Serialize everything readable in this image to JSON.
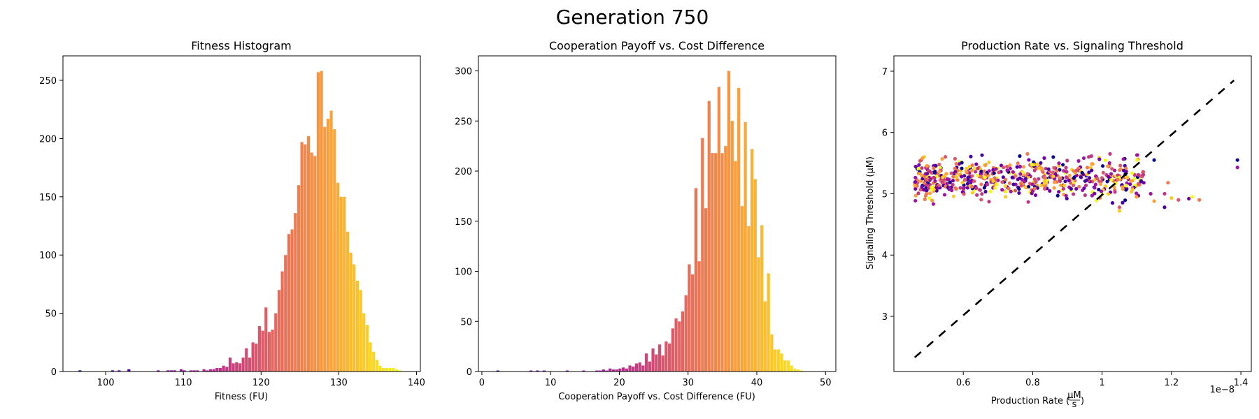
{
  "figure": {
    "suptitle": "Generation 750"
  },
  "colormap": [
    "#0d0887",
    "#46039f",
    "#7201a8",
    "#9c179e",
    "#bd3786",
    "#d8576b",
    "#ed7953",
    "#fb9f3a",
    "#fdca26",
    "#f0f921"
  ],
  "chart_data": [
    {
      "type": "bar",
      "title": "Fitness Histogram",
      "xlabel": "Fitness (FU)",
      "ylabel": "",
      "xlim": [
        94.5,
        140.5
      ],
      "ylim": [
        0,
        271
      ],
      "xticks": [
        100,
        110,
        120,
        130,
        140
      ],
      "yticks": [
        0,
        50,
        100,
        150,
        200,
        250
      ],
      "bin_start": 96.5,
      "bin_width": 0.42,
      "values": [
        1,
        0,
        0,
        0,
        0,
        0,
        0,
        0,
        0,
        0,
        1,
        0,
        1,
        0,
        0,
        2,
        0,
        0,
        0,
        0,
        0,
        0,
        0,
        0,
        1,
        0,
        0,
        1,
        1,
        1,
        0,
        2,
        1,
        0,
        1,
        1,
        1,
        0,
        2,
        1,
        2,
        2,
        3,
        3,
        5,
        4,
        12,
        7,
        8,
        7,
        12,
        20,
        12,
        25,
        24,
        39,
        35,
        55,
        34,
        36,
        50,
        70,
        86,
        100,
        118,
        122,
        136,
        160,
        197,
        195,
        202,
        188,
        185,
        257,
        258,
        210,
        217,
        224,
        208,
        162,
        150,
        150,
        120,
        102,
        92,
        78,
        70,
        50,
        40,
        25,
        17,
        10,
        5,
        3,
        3,
        3,
        3,
        2,
        1
      ]
    },
    {
      "type": "bar",
      "title": "Cooperation Payoff vs. Cost Difference",
      "xlabel": "Cooperation Payoff vs. Cost Difference (FU)",
      "ylabel": "",
      "xlim": [
        -0.5,
        51.5
      ],
      "ylim": [
        0,
        315
      ],
      "xticks": [
        0,
        10,
        20,
        30,
        40,
        50
      ],
      "yticks": [
        0,
        50,
        100,
        150,
        200,
        250,
        300
      ],
      "bin_start": 0.2,
      "bin_width": 0.48,
      "values": [
        0,
        0,
        0,
        0,
        1,
        0,
        0,
        0,
        0,
        0,
        0,
        0,
        0,
        0,
        1,
        0,
        1,
        0,
        1,
        0,
        0,
        0,
        0,
        0,
        0,
        1,
        0,
        0,
        0,
        0,
        1,
        0,
        0,
        0,
        1,
        1,
        2,
        1,
        3,
        2,
        2,
        3,
        4,
        3,
        6,
        5,
        8,
        9,
        6,
        18,
        10,
        23,
        17,
        27,
        16,
        30,
        28,
        43,
        53,
        50,
        60,
        76,
        107,
        97,
        183,
        110,
        233,
        163,
        270,
        218,
        218,
        284,
        218,
        225,
        300,
        250,
        210,
        283,
        165,
        249,
        145,
        222,
        192,
        114,
        146,
        70,
        98,
        37,
        22,
        22,
        18,
        11,
        11,
        6,
        3,
        2,
        1,
        0,
        0,
        0
      ]
    },
    {
      "type": "scatter",
      "title": "Production Rate vs. Signaling Threshold",
      "xlabel": "Production Rate",
      "xlabel_unit": "μM/s",
      "ylabel": "Signaling Threshold (μM)",
      "x_offset_label": "1e−8",
      "xlim": [
        0.4,
        1.43
      ],
      "ylim": [
        2.1,
        7.25
      ],
      "xticks": [
        0.6,
        0.8,
        1.0,
        1.2,
        1.4
      ],
      "yticks": [
        3,
        4,
        5,
        6,
        7
      ],
      "reference_line": {
        "x": [
          0.46,
          1.38
        ],
        "y": [
          2.33,
          6.85
        ],
        "style": "dashed"
      },
      "cloud": {
        "x_range": [
          0.46,
          1.12
        ],
        "y_center": 5.25,
        "y_spread": 0.25,
        "count": 640
      },
      "extra_points": [
        [
          1.39,
          5.55
        ],
        [
          1.39,
          5.43
        ],
        [
          1.28,
          4.9
        ],
        [
          1.26,
          4.95
        ],
        [
          1.25,
          4.92
        ],
        [
          1.22,
          4.9
        ],
        [
          1.2,
          4.93
        ],
        [
          1.18,
          4.78
        ],
        [
          1.18,
          5.0
        ],
        [
          1.15,
          4.88
        ],
        [
          1.15,
          5.55
        ],
        [
          1.14,
          5.0
        ],
        [
          1.19,
          5.18
        ],
        [
          1.1,
          5.55
        ],
        [
          1.12,
          5.18
        ],
        [
          1.05,
          4.78
        ],
        [
          1.05,
          4.72
        ],
        [
          1.03,
          4.85
        ]
      ]
    }
  ]
}
